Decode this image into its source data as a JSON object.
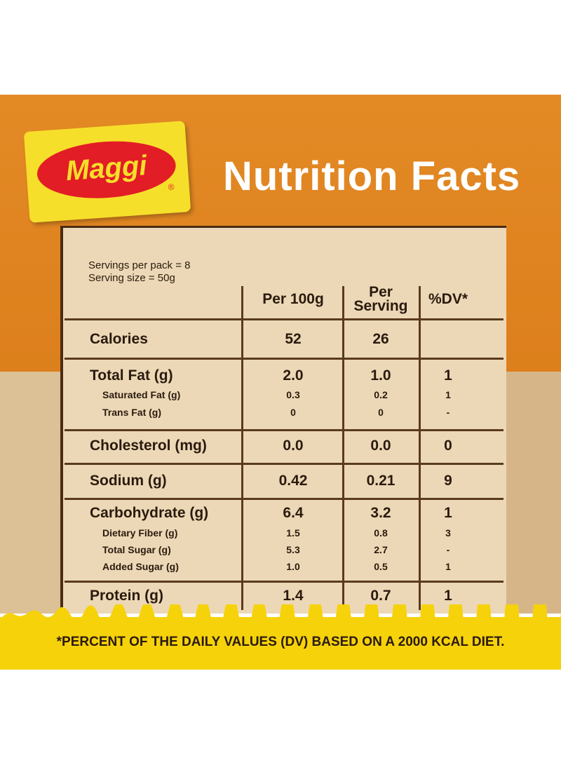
{
  "logo": {
    "brand": "Maggi",
    "mark": "®"
  },
  "title": "Nutrition Facts",
  "servings": [
    "Servings per pack = 8",
    "Serving size = 50g"
  ],
  "table": {
    "columns": [
      "Per 100g",
      "Per Serving",
      "%DV*"
    ],
    "groups": [
      {
        "rows": [
          {
            "label": "Calories",
            "cells": [
              "52",
              "26",
              ""
            ]
          }
        ]
      },
      {
        "rows": [
          {
            "label": "Total Fat (g)",
            "cells": [
              "2.0",
              "1.0",
              "1"
            ]
          },
          {
            "label": "Saturated Fat (g)",
            "cells": [
              "0.3",
              "0.2",
              "1"
            ]
          },
          {
            "label": "Trans Fat (g)",
            "cells": [
              "0",
              "0",
              "-"
            ]
          }
        ]
      },
      {
        "rows": [
          {
            "label": "Cholesterol (mg)",
            "cells": [
              "0.0",
              "0.0",
              "0"
            ]
          }
        ]
      },
      {
        "rows": [
          {
            "label": "Sodium (g)",
            "cells": [
              "0.42",
              "0.21",
              "9"
            ]
          }
        ]
      },
      {
        "rows": [
          {
            "label": "Carbohydrate (g)",
            "cells": [
              "6.4",
              "3.2",
              "1"
            ]
          },
          {
            "label": "Dietary Fiber (g)",
            "cells": [
              "1.5",
              "0.8",
              "3"
            ]
          },
          {
            "label": "Total Sugar (g)",
            "cells": [
              "5.3",
              "2.7",
              "-"
            ]
          },
          {
            "label": "Added Sugar (g)",
            "cells": [
              "1.0",
              "0.5",
              "1"
            ]
          }
        ]
      },
      {
        "rows": [
          {
            "label": "Protein (g)",
            "cells": [
              "1.4",
              "0.7",
              "1"
            ]
          }
        ]
      }
    ]
  },
  "footnote": "*PERCENT OF THE DAILY VALUES (DV) BASED ON A 2000 KCAL DIET."
}
